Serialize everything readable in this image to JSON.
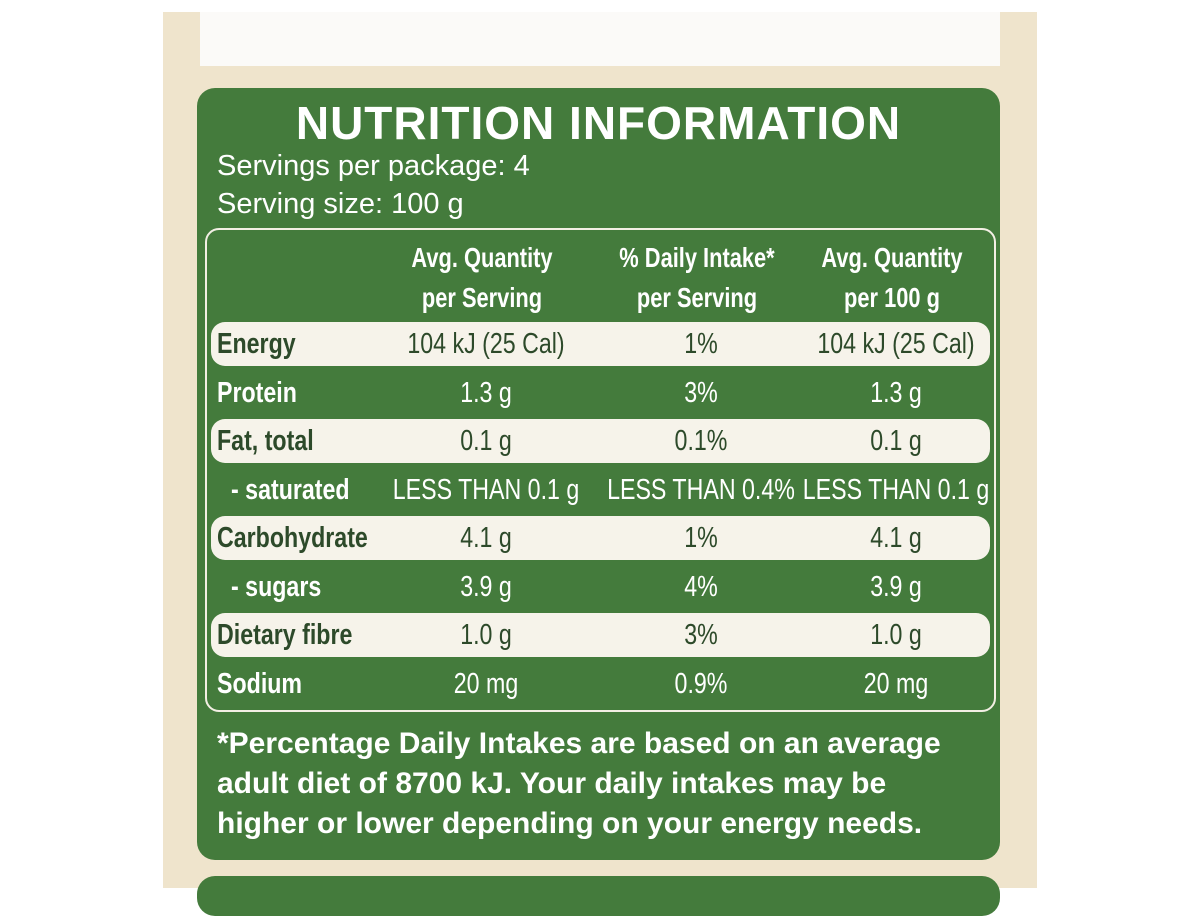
{
  "header": {
    "title": "NUTRITION INFORMATION",
    "servings_per_package": "Servings per package: 4",
    "serving_size": "Serving size: 100 g"
  },
  "table": {
    "columns": [
      [
        "Avg. Quantity",
        "per Serving"
      ],
      [
        "% Daily Intake*",
        "per Serving"
      ],
      [
        "Avg. Quantity",
        "per 100 g"
      ]
    ],
    "rows": [
      [
        "Energy",
        "104 kJ (25 Cal)",
        "1%",
        "104 kJ (25 Cal)"
      ],
      [
        "Protein",
        "1.3 g",
        "3%",
        "1.3 g"
      ],
      [
        "Fat, total",
        "0.1 g",
        "0.1%",
        "0.1 g"
      ],
      [
        "- saturated",
        "LESS THAN 0.1 g",
        "LESS THAN 0.4%",
        "LESS THAN 0.1 g"
      ],
      [
        "Carbohydrate",
        "4.1 g",
        "1%",
        "4.1 g"
      ],
      [
        "- sugars",
        "3.9 g",
        "4%",
        "3.9 g"
      ],
      [
        "Dietary fibre",
        "1.0 g",
        "3%",
        "1.0 g"
      ],
      [
        "Sodium",
        "20 mg",
        "0.9%",
        "20 mg"
      ]
    ]
  },
  "footnote": [
    "*Percentage Daily Intakes are based on an average",
    "adult diet of 8700 kJ. Your daily intakes may be",
    "higher or lower depending on your energy needs."
  ]
}
